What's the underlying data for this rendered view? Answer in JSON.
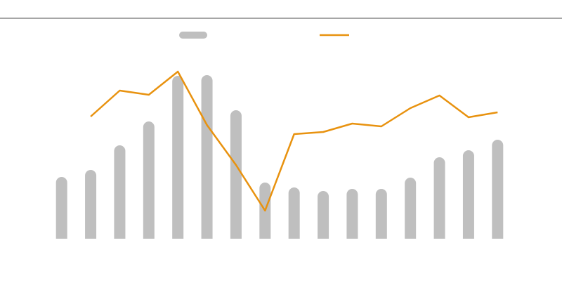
{
  "chart_data": {
    "type": "bar-line",
    "categories": [
      null,
      null,
      null,
      null,
      null,
      null,
      null,
      null,
      null,
      null,
      null,
      null,
      null,
      null,
      null,
      null
    ],
    "series": [
      {
        "type": "bar",
        "color": "#bfbfbf",
        "values": [
          88,
          98,
          133,
          167,
          232,
          233,
          183,
          80,
          73,
          68,
          71,
          71,
          87,
          116,
          126,
          141
        ]
      },
      {
        "type": "line",
        "color": "#e8920f",
        "values": [
          null,
          174,
          211,
          205,
          238,
          162,
          105,
          40,
          149,
          152,
          164,
          160,
          186,
          204,
          173,
          180
        ]
      }
    ],
    "ylim": [
      0,
      250
    ]
  }
}
